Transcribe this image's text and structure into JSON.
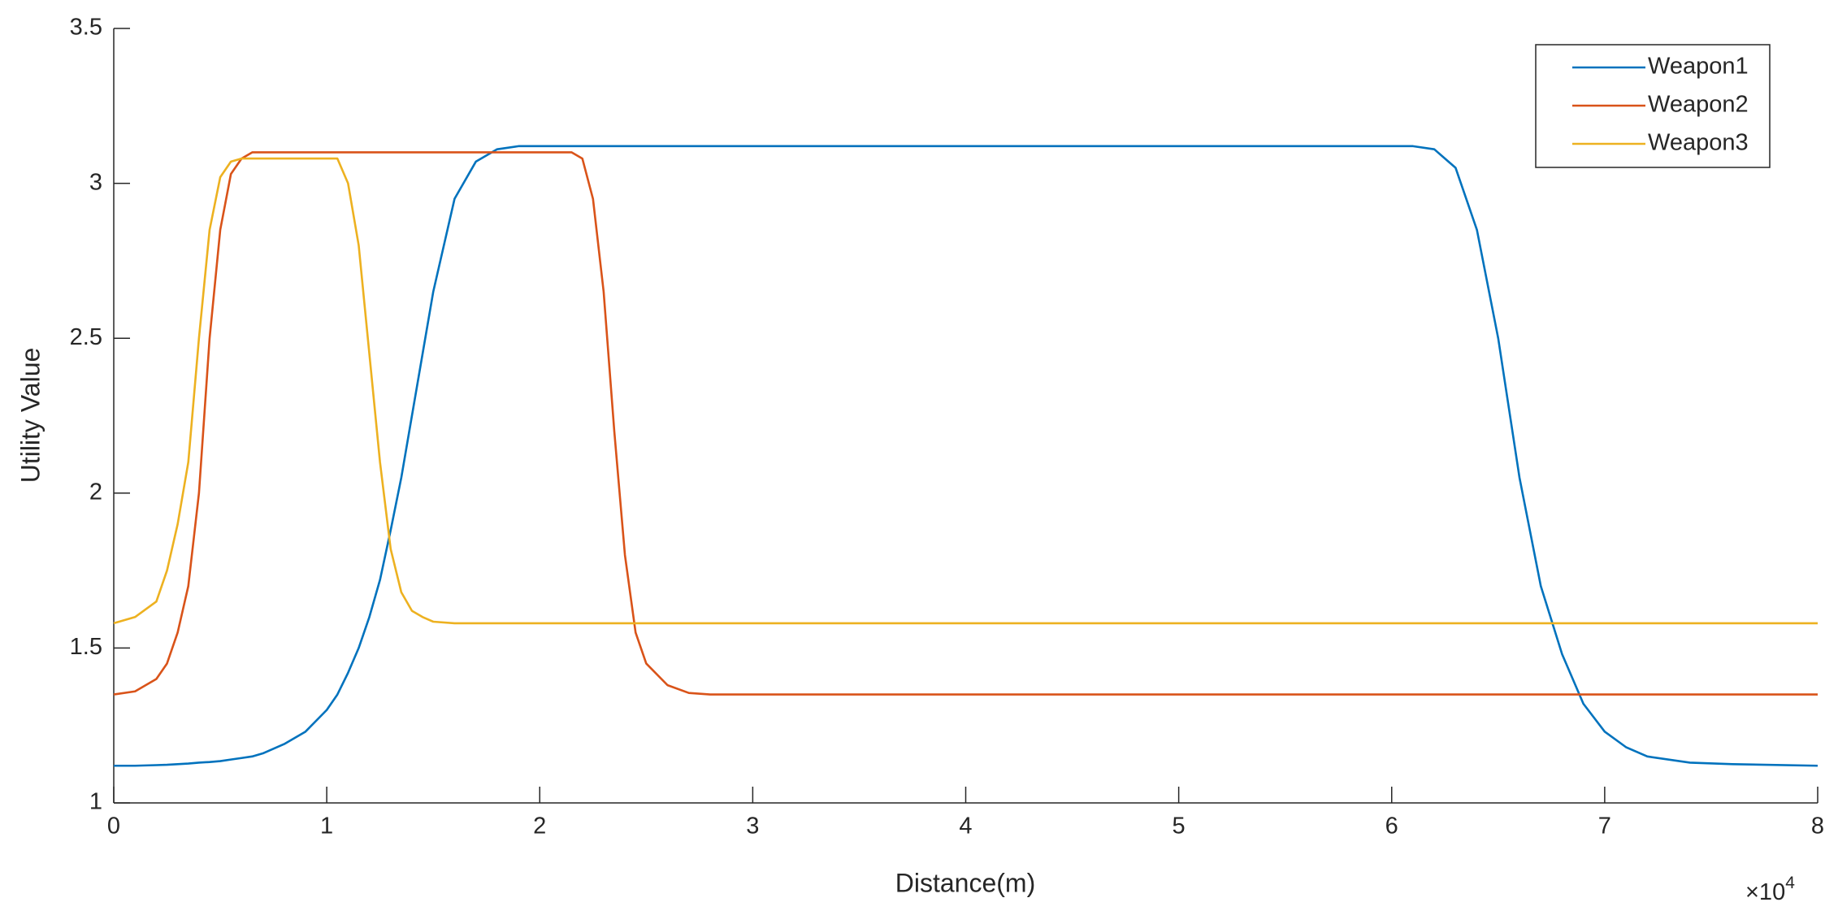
{
  "chart_data": {
    "type": "line",
    "xlabel": "Distance(m)",
    "ylabel": "Utility Value",
    "x_exponent": {
      "base": "×10",
      "power": "4"
    },
    "x": [
      0,
      1000,
      2000,
      2500,
      3000,
      3500,
      4000,
      4500,
      5000,
      5500,
      6000,
      6500,
      7000,
      8000,
      9000,
      10000,
      10500,
      11000,
      11500,
      12000,
      12500,
      13000,
      13500,
      14000,
      14500,
      15000,
      16000,
      17000,
      18000,
      19000,
      20000,
      21000,
      21500,
      22000,
      22500,
      23000,
      23500,
      24000,
      24500,
      25000,
      26000,
      27000,
      28000,
      30000,
      40000,
      50000,
      60000,
      61000,
      62000,
      63000,
      64000,
      65000,
      66000,
      67000,
      68000,
      69000,
      70000,
      71000,
      72000,
      74000,
      76000,
      80000
    ],
    "series": [
      {
        "name": "Weapon1",
        "color": "#0072bd",
        "values": [
          1.12,
          1.12,
          1.122,
          1.123,
          1.125,
          1.127,
          1.13,
          1.132,
          1.135,
          1.14,
          1.145,
          1.15,
          1.16,
          1.19,
          1.23,
          1.3,
          1.35,
          1.42,
          1.5,
          1.6,
          1.72,
          1.88,
          2.05,
          2.25,
          2.45,
          2.65,
          2.95,
          3.07,
          3.11,
          3.12,
          3.12,
          3.12,
          3.12,
          3.12,
          3.12,
          3.12,
          3.12,
          3.12,
          3.12,
          3.12,
          3.12,
          3.12,
          3.12,
          3.12,
          3.12,
          3.12,
          3.12,
          3.12,
          3.11,
          3.05,
          2.85,
          2.5,
          2.05,
          1.7,
          1.48,
          1.32,
          1.23,
          1.18,
          1.15,
          1.13,
          1.125,
          1.12
        ]
      },
      {
        "name": "Weapon2",
        "color": "#d95319",
        "values": [
          1.35,
          1.36,
          1.4,
          1.45,
          1.55,
          1.7,
          2.0,
          2.5,
          2.85,
          3.03,
          3.08,
          3.1,
          3.1,
          3.1,
          3.1,
          3.1,
          3.1,
          3.1,
          3.1,
          3.1,
          3.1,
          3.1,
          3.1,
          3.1,
          3.1,
          3.1,
          3.1,
          3.1,
          3.1,
          3.1,
          3.1,
          3.1,
          3.1,
          3.08,
          2.95,
          2.65,
          2.2,
          1.8,
          1.55,
          1.45,
          1.38,
          1.355,
          1.35,
          1.35,
          1.35,
          1.35,
          1.35,
          1.35,
          1.35,
          1.35,
          1.35,
          1.35,
          1.35,
          1.35,
          1.35,
          1.35,
          1.35,
          1.35,
          1.35,
          1.35,
          1.35,
          1.35
        ]
      },
      {
        "name": "Weapon3",
        "color": "#edb120",
        "values": [
          1.58,
          1.6,
          1.65,
          1.75,
          1.9,
          2.1,
          2.5,
          2.85,
          3.02,
          3.07,
          3.08,
          3.08,
          3.08,
          3.08,
          3.08,
          3.08,
          3.08,
          3.0,
          2.8,
          2.45,
          2.1,
          1.82,
          1.68,
          1.62,
          1.6,
          1.585,
          1.58,
          1.58,
          1.58,
          1.58,
          1.58,
          1.58,
          1.58,
          1.58,
          1.58,
          1.58,
          1.58,
          1.58,
          1.58,
          1.58,
          1.58,
          1.58,
          1.58,
          1.58,
          1.58,
          1.58,
          1.58,
          1.58,
          1.58,
          1.58,
          1.58,
          1.58,
          1.58,
          1.58,
          1.58,
          1.58,
          1.58,
          1.58,
          1.58,
          1.58,
          1.58,
          1.58
        ]
      }
    ],
    "xlim": [
      0,
      80000
    ],
    "xticks": [
      0,
      {
        "value": 10000,
        "label": "1"
      },
      {
        "value": 20000,
        "label": "2"
      },
      {
        "value": 30000,
        "label": "3"
      },
      {
        "value": 40000,
        "label": "4"
      },
      {
        "value": 50000,
        "label": "5"
      },
      {
        "value": 60000,
        "label": "6"
      },
      {
        "value": 70000,
        "label": "7"
      },
      {
        "value": 80000,
        "label": "8"
      }
    ],
    "ylim": [
      1,
      3.5
    ],
    "yticks": [
      1,
      1.5,
      2,
      2.5,
      3,
      3.5
    ],
    "grid": false,
    "legend": "northeast"
  }
}
